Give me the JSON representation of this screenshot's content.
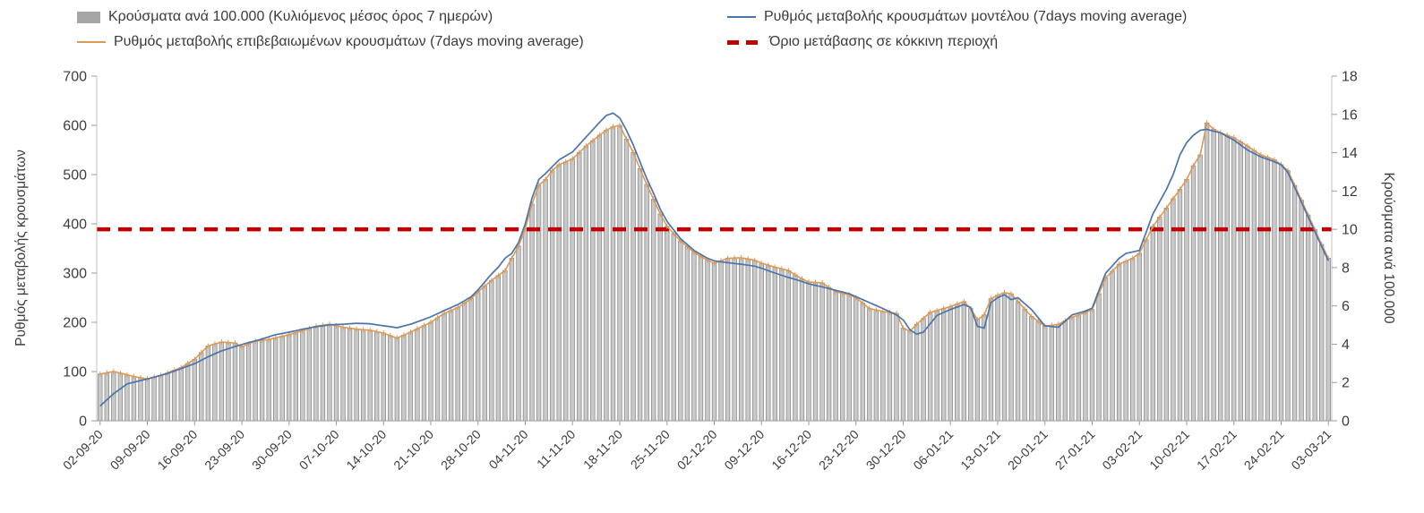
{
  "chart_data": {
    "type": "combo",
    "title": "",
    "left_axis": {
      "label": "Ρυθμός μεταβολής κρουσμάτων",
      "min": 0,
      "max": 700,
      "tick_step": 100
    },
    "right_axis": {
      "label": "Κρούσματα ανά 100.000",
      "min": 0,
      "max": 18,
      "tick_step": 2
    },
    "x_axis": {
      "days_total": 183,
      "tick_day_interval": 7,
      "tick_labels": [
        "02-09-20",
        "09-09-20",
        "16-09-20",
        "23-09-20",
        "30-09-20",
        "07-10-20",
        "14-10-20",
        "21-10-20",
        "28-10-20",
        "04-11-20",
        "11-11-20",
        "18-11-20",
        "25-11-20",
        "02-12-20",
        "09-12-20",
        "16-12-20",
        "23-12-20",
        "30-12-20",
        "06-01-21",
        "13-01-21",
        "20-01-21",
        "27-01-21",
        "03-02-21",
        "10-02-21",
        "17-02-21",
        "24-02-21",
        "03-03-21"
      ]
    },
    "threshold": {
      "name": "Όριο μετάβασης σε κόκκινη περιοχή",
      "axis": "right",
      "value": 10,
      "style": "dashed",
      "color": "#c00000"
    },
    "series": [
      {
        "name": "Κρούσματα ανά 100.000 (Κυλιόμενος μέσος όρος 7 ημερών)",
        "id": "cases_per_100k_bars",
        "type": "bar",
        "axis": "right",
        "color": "#c9c9c9",
        "stroke": "#8d8d8d",
        "legend_color": "#a6a6a6",
        "derived_from": "confirmed_rate",
        "left_to_right_scale": 0.0257143
      },
      {
        "name": "Ρυθμός μεταβολής επιβεβαιωμένων κρουσμάτων (7days moving average)",
        "id": "confirmed_rate",
        "type": "line",
        "axis": "left",
        "color": "#dc9a55",
        "anchors_day_value": [
          [
            0,
            95
          ],
          [
            2,
            100
          ],
          [
            5,
            90
          ],
          [
            7,
            85
          ],
          [
            9,
            92
          ],
          [
            12,
            108
          ],
          [
            14,
            125
          ],
          [
            16,
            152
          ],
          [
            18,
            160
          ],
          [
            20,
            158
          ],
          [
            21,
            150
          ],
          [
            23,
            162
          ],
          [
            25,
            165
          ],
          [
            28,
            175
          ],
          [
            30,
            183
          ],
          [
            32,
            192
          ],
          [
            34,
            196
          ],
          [
            36,
            190
          ],
          [
            38,
            186
          ],
          [
            40,
            184
          ],
          [
            42,
            178
          ],
          [
            44,
            168
          ],
          [
            46,
            180
          ],
          [
            49,
            200
          ],
          [
            51,
            218
          ],
          [
            53,
            230
          ],
          [
            55,
            248
          ],
          [
            56,
            262
          ],
          [
            58,
            285
          ],
          [
            60,
            305
          ],
          [
            61,
            330
          ],
          [
            62,
            355
          ],
          [
            63,
            390
          ],
          [
            64,
            440
          ],
          [
            65,
            478
          ],
          [
            66,
            490
          ],
          [
            67,
            508
          ],
          [
            68,
            520
          ],
          [
            70,
            532
          ],
          [
            72,
            558
          ],
          [
            74,
            580
          ],
          [
            75,
            590
          ],
          [
            76,
            597
          ],
          [
            77,
            600
          ],
          [
            78,
            572
          ],
          [
            79,
            545
          ],
          [
            80,
            512
          ],
          [
            81,
            480
          ],
          [
            82,
            450
          ],
          [
            83,
            420
          ],
          [
            84,
            395
          ],
          [
            86,
            365
          ],
          [
            88,
            342
          ],
          [
            90,
            326
          ],
          [
            91,
            320
          ],
          [
            93,
            330
          ],
          [
            95,
            331
          ],
          [
            97,
            326
          ],
          [
            98,
            320
          ],
          [
            100,
            312
          ],
          [
            102,
            305
          ],
          [
            104,
            288
          ],
          [
            105,
            282
          ],
          [
            107,
            280
          ],
          [
            109,
            262
          ],
          [
            111,
            256
          ],
          [
            112,
            250
          ],
          [
            114,
            228
          ],
          [
            116,
            222
          ],
          [
            118,
            218
          ],
          [
            119,
            188
          ],
          [
            120,
            182
          ],
          [
            121,
            196
          ],
          [
            123,
            220
          ],
          [
            125,
            228
          ],
          [
            126,
            232
          ],
          [
            128,
            242
          ],
          [
            129,
            228
          ],
          [
            130,
            205
          ],
          [
            131,
            215
          ],
          [
            132,
            248
          ],
          [
            133,
            255
          ],
          [
            134,
            260
          ],
          [
            135,
            258
          ],
          [
            136,
            242
          ],
          [
            138,
            212
          ],
          [
            140,
            192
          ],
          [
            142,
            196
          ],
          [
            144,
            210
          ],
          [
            146,
            220
          ],
          [
            147,
            226
          ],
          [
            149,
            290
          ],
          [
            151,
            318
          ],
          [
            153,
            330
          ],
          [
            154,
            340
          ],
          [
            156,
            395
          ],
          [
            158,
            432
          ],
          [
            160,
            470
          ],
          [
            161,
            490
          ],
          [
            162,
            518
          ],
          [
            163,
            540
          ],
          [
            164,
            605
          ],
          [
            165,
            592
          ],
          [
            166,
            585
          ],
          [
            168,
            575
          ],
          [
            170,
            558
          ],
          [
            172,
            540
          ],
          [
            174,
            530
          ],
          [
            175,
            520
          ],
          [
            176,
            508
          ],
          [
            177,
            478
          ],
          [
            178,
            448
          ],
          [
            179,
            418
          ],
          [
            180,
            388
          ],
          [
            181,
            358
          ],
          [
            182,
            330
          ]
        ]
      },
      {
        "name": "Ρυθμός μεταβολής κρουσμάτων μοντέλου (7days moving average)",
        "id": "model_rate",
        "type": "line",
        "axis": "left",
        "color": "#4a74ae",
        "anchors_day_value": [
          [
            0,
            30
          ],
          [
            2,
            55
          ],
          [
            4,
            75
          ],
          [
            7,
            85
          ],
          [
            10,
            96
          ],
          [
            12,
            106
          ],
          [
            14,
            116
          ],
          [
            16,
            130
          ],
          [
            18,
            142
          ],
          [
            21,
            155
          ],
          [
            24,
            166
          ],
          [
            26,
            175
          ],
          [
            28,
            180
          ],
          [
            30,
            186
          ],
          [
            32,
            191
          ],
          [
            34,
            195
          ],
          [
            36,
            196
          ],
          [
            38,
            198
          ],
          [
            40,
            197
          ],
          [
            42,
            193
          ],
          [
            44,
            189
          ],
          [
            46,
            196
          ],
          [
            48,
            206
          ],
          [
            49,
            211
          ],
          [
            51,
            224
          ],
          [
            53,
            236
          ],
          [
            55,
            252
          ],
          [
            56,
            266
          ],
          [
            57,
            282
          ],
          [
            58,
            298
          ],
          [
            59,
            312
          ],
          [
            60,
            330
          ],
          [
            61,
            340
          ],
          [
            62,
            362
          ],
          [
            63,
            400
          ],
          [
            64,
            452
          ],
          [
            65,
            490
          ],
          [
            66,
            502
          ],
          [
            67,
            516
          ],
          [
            68,
            530
          ],
          [
            70,
            546
          ],
          [
            72,
            576
          ],
          [
            74,
            606
          ],
          [
            75,
            620
          ],
          [
            76,
            625
          ],
          [
            77,
            615
          ],
          [
            78,
            590
          ],
          [
            79,
            560
          ],
          [
            80,
            526
          ],
          [
            81,
            492
          ],
          [
            82,
            462
          ],
          [
            83,
            430
          ],
          [
            84,
            405
          ],
          [
            86,
            370
          ],
          [
            88,
            346
          ],
          [
            90,
            330
          ],
          [
            91,
            325
          ],
          [
            93,
            321
          ],
          [
            95,
            318
          ],
          [
            97,
            314
          ],
          [
            98,
            310
          ],
          [
            100,
            300
          ],
          [
            102,
            291
          ],
          [
            104,
            283
          ],
          [
            105,
            278
          ],
          [
            107,
            272
          ],
          [
            109,
            265
          ],
          [
            111,
            258
          ],
          [
            112,
            252
          ],
          [
            114,
            240
          ],
          [
            116,
            228
          ],
          [
            118,
            215
          ],
          [
            119,
            205
          ],
          [
            120,
            185
          ],
          [
            121,
            176
          ],
          [
            122,
            180
          ],
          [
            124,
            214
          ],
          [
            126,
            226
          ],
          [
            128,
            236
          ],
          [
            129,
            230
          ],
          [
            130,
            192
          ],
          [
            131,
            188
          ],
          [
            132,
            240
          ],
          [
            133,
            250
          ],
          [
            134,
            256
          ],
          [
            135,
            246
          ],
          [
            136,
            250
          ],
          [
            138,
            226
          ],
          [
            140,
            193
          ],
          [
            142,
            190
          ],
          [
            144,
            215
          ],
          [
            146,
            223
          ],
          [
            147,
            229
          ],
          [
            149,
            300
          ],
          [
            151,
            330
          ],
          [
            152,
            340
          ],
          [
            154,
            346
          ],
          [
            156,
            420
          ],
          [
            158,
            470
          ],
          [
            159,
            500
          ],
          [
            160,
            540
          ],
          [
            161,
            565
          ],
          [
            162,
            580
          ],
          [
            163,
            590
          ],
          [
            164,
            592
          ],
          [
            165,
            588
          ],
          [
            166,
            585
          ],
          [
            168,
            570
          ],
          [
            170,
            550
          ],
          [
            172,
            536
          ],
          [
            174,
            526
          ],
          [
            175,
            520
          ],
          [
            176,
            504
          ],
          [
            177,
            474
          ],
          [
            178,
            444
          ],
          [
            179,
            414
          ],
          [
            180,
            384
          ],
          [
            181,
            354
          ],
          [
            182,
            325
          ]
        ]
      }
    ]
  }
}
